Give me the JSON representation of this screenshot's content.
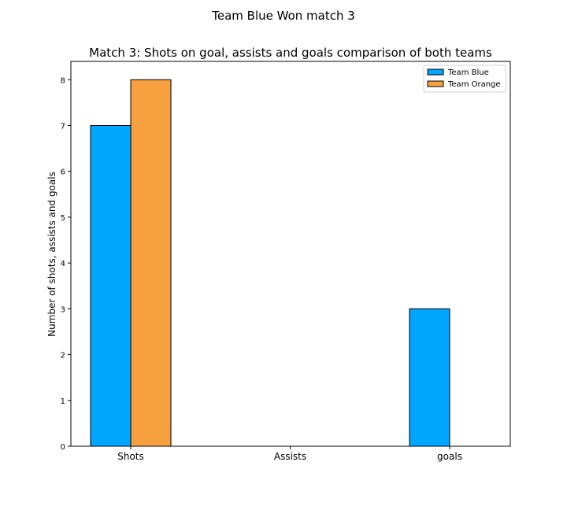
{
  "figure": {
    "suptitle": "Team Blue Won match 3"
  },
  "chart_data": {
    "type": "bar",
    "title": "Match 3: Shots on goal, assists and goals comparison of both teams",
    "xlabel": "",
    "ylabel": "Number of shots, assists and goals",
    "categories": [
      "Shots",
      "Assists",
      "goals"
    ],
    "series": [
      {
        "name": "Team Blue",
        "values": [
          7,
          0,
          3
        ],
        "color": "#00a6ff"
      },
      {
        "name": "Team Orange",
        "values": [
          8,
          0,
          0
        ],
        "color": "#f7a03f"
      }
    ],
    "ylim": [
      0,
      8.4
    ],
    "yticks": [
      0,
      1,
      2,
      3,
      4,
      5,
      6,
      7,
      8
    ],
    "grid": false,
    "legend_position": "top-right",
    "bar_edge_color": "#000000"
  }
}
